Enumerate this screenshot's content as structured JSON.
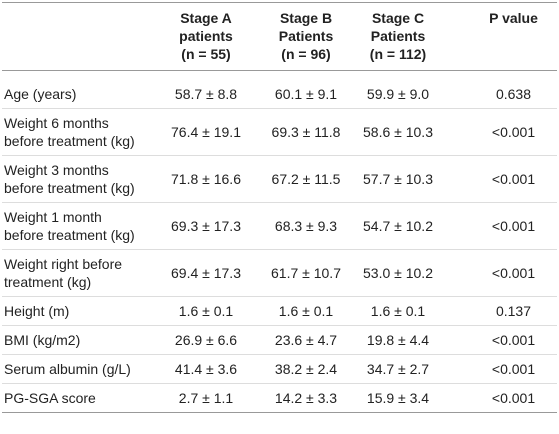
{
  "table": {
    "header": [
      [],
      [
        "Stage A",
        "patients",
        "(n = 55)"
      ],
      [
        "Stage B",
        "Patients",
        "(n = 96)"
      ],
      [
        "Stage C",
        "Patients",
        "(n = 112)"
      ],
      [
        "P value"
      ]
    ],
    "rows": [
      [
        [
          "Age (years)"
        ],
        "58.7 ± 8.8",
        "60.1 ± 9.1",
        "59.9 ± 9.0",
        "0.638"
      ],
      [
        [
          "Weight 6 months",
          "before treatment (kg)"
        ],
        "76.4 ± 19.1",
        "69.3 ± 11.8",
        "58.6 ± 10.3",
        "<0.001"
      ],
      [
        [
          "Weight 3 months",
          "before treatment (kg)"
        ],
        "71.8 ± 16.6",
        "67.2 ± 11.5",
        "57.7 ± 10.3",
        "<0.001"
      ],
      [
        [
          "Weight 1 month",
          "before treatment (kg)"
        ],
        "69.3 ± 17.3",
        "68.3 ± 9.3",
        "54.7 ± 10.2",
        "<0.001"
      ],
      [
        [
          "Weight right before",
          "treatment (kg)"
        ],
        "69.4 ± 17.3",
        "61.7 ± 10.7",
        "53.0 ± 10.2",
        "<0.001"
      ],
      [
        [
          "Height (m)"
        ],
        "1.6 ± 0.1",
        "1.6 ± 0.1",
        "1.6 ± 0.1",
        "0.137"
      ],
      [
        [
          "BMI (kg/m2)"
        ],
        "26.9 ± 6.6",
        "23.6 ± 4.7",
        "19.8 ± 4.4",
        "<0.001"
      ],
      [
        [
          "Serum albumin (g/L)"
        ],
        "41.4 ± 3.6",
        "38.2 ± 2.4",
        "34.7 ± 2.7",
        "<0.001"
      ],
      [
        [
          "PG-SGA score"
        ],
        "2.7 ± 1.1",
        "14.2 ± 3.3",
        "15.9 ± 3.4",
        "<0.001"
      ]
    ]
  }
}
